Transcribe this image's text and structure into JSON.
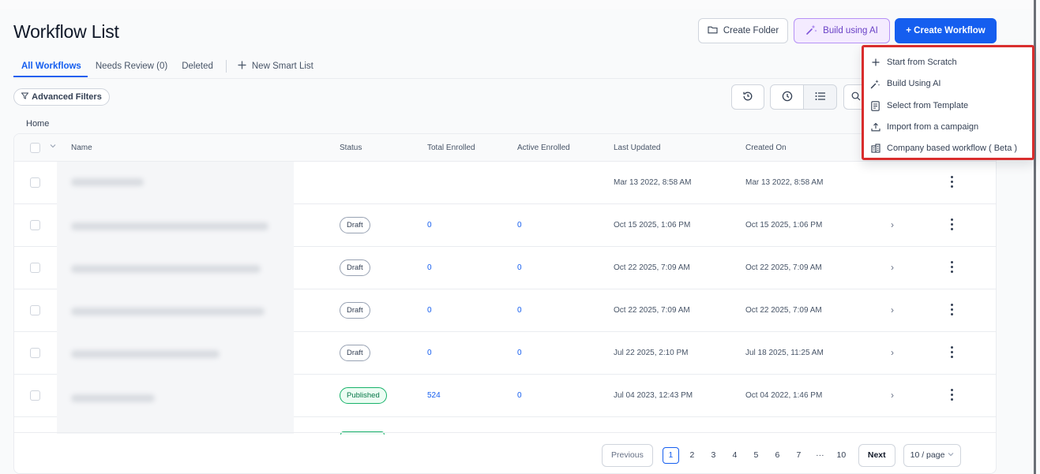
{
  "page": {
    "title": "Workflow List"
  },
  "header": {
    "create_folder_label": "Create Folder",
    "build_ai_label": "Build using AI",
    "create_workflow_label": "+ Create Workflow"
  },
  "tabs": [
    {
      "label": "All Workflows",
      "active": true
    },
    {
      "label": "Needs Review (0)",
      "active": false
    },
    {
      "label": "Deleted",
      "active": false
    }
  ],
  "new_smart_list_label": "New Smart List",
  "filters": {
    "advanced_label": "Advanced Filters"
  },
  "breadcrumb": "Home",
  "table": {
    "headers": {
      "name": "Name",
      "status": "Status",
      "total_enrolled": "Total Enrolled",
      "active_enrolled": "Active Enrolled",
      "last_updated": "Last Updated",
      "created_on": "Created On"
    },
    "rows": [
      {
        "status": "",
        "total": "",
        "active": "",
        "last_updated": "Mar 13 2022, 8:58 AM",
        "created_on": "Mar 13 2022, 8:58 AM"
      },
      {
        "status": "Draft",
        "total": "0",
        "active": "0",
        "last_updated": "Oct 15 2025, 1:06 PM",
        "created_on": "Oct 15 2025, 1:06 PM"
      },
      {
        "status": "Draft",
        "total": "0",
        "active": "0",
        "last_updated": "Oct 22 2025, 7:09 AM",
        "created_on": "Oct 22 2025, 7:09 AM"
      },
      {
        "status": "Draft",
        "total": "0",
        "active": "0",
        "last_updated": "Oct 22 2025, 7:09 AM",
        "created_on": "Oct 22 2025, 7:09 AM"
      },
      {
        "status": "Draft",
        "total": "0",
        "active": "0",
        "last_updated": "Jul 22 2025, 2:10 PM",
        "created_on": "Jul 18 2025, 11:25 AM"
      },
      {
        "status": "Published",
        "total": "524",
        "active": "0",
        "last_updated": "Jul 04 2023, 12:43 PM",
        "created_on": "Oct 04 2022, 1:46 PM"
      }
    ]
  },
  "pagination": {
    "previous_label": "Previous",
    "pages": [
      "1",
      "2",
      "3",
      "4",
      "5",
      "6",
      "7"
    ],
    "ellipsis": "···",
    "last_page": "10",
    "next_label": "Next",
    "page_size_label": "10 / page"
  },
  "dropdown": {
    "items": [
      {
        "label": "Start from Scratch",
        "icon": "plus-icon"
      },
      {
        "label": "Build Using AI",
        "icon": "sparkle-wand-icon"
      },
      {
        "label": "Select from Template",
        "icon": "template-icon"
      },
      {
        "label": "Import from a campaign",
        "icon": "import-icon"
      },
      {
        "label": "Company based workflow ( Beta )",
        "icon": "company-icon"
      }
    ]
  },
  "colors": {
    "primary": "#155eef",
    "ai_purple": "#6941c6",
    "published_green": "#17b26a",
    "highlight_red": "#d92d2d"
  }
}
